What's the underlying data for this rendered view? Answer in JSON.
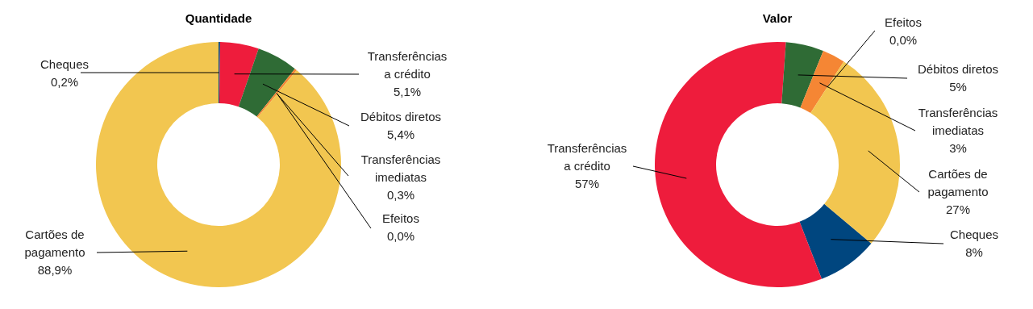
{
  "chart_data": [
    {
      "type": "donut",
      "title": "Quantidade",
      "categories": [
        "Cheques",
        "Transferências a crédito",
        "Débitos diretos",
        "Transferências imediatas",
        "Efeitos",
        "Cartões de pagamento"
      ],
      "values": [
        0.2,
        5.1,
        5.4,
        0.3,
        0.0,
        88.9
      ],
      "value_labels": [
        "0,2%",
        "5,1%",
        "5,4%",
        "0,3%",
        "0,0%",
        "88,9%"
      ],
      "colors": [
        "#00467f",
        "#ee1c3c",
        "#2f6b35",
        "#f58634",
        "#8c8c8c",
        "#f2c650"
      ]
    },
    {
      "type": "donut",
      "title": "Valor",
      "categories": [
        "Cheques",
        "Transferências a crédito",
        "Débitos diretos",
        "Transferências imediatas",
        "Efeitos",
        "Cartões de pagamento"
      ],
      "values": [
        8,
        57,
        5,
        3,
        0,
        27
      ],
      "value_labels": [
        "8%",
        "57%",
        "5%",
        "3%",
        "0,0%",
        "27%"
      ],
      "colors": [
        "#00467f",
        "#ee1c3c",
        "#2f6b35",
        "#f58634",
        "#8c8c8c",
        "#f2c650"
      ]
    }
  ]
}
